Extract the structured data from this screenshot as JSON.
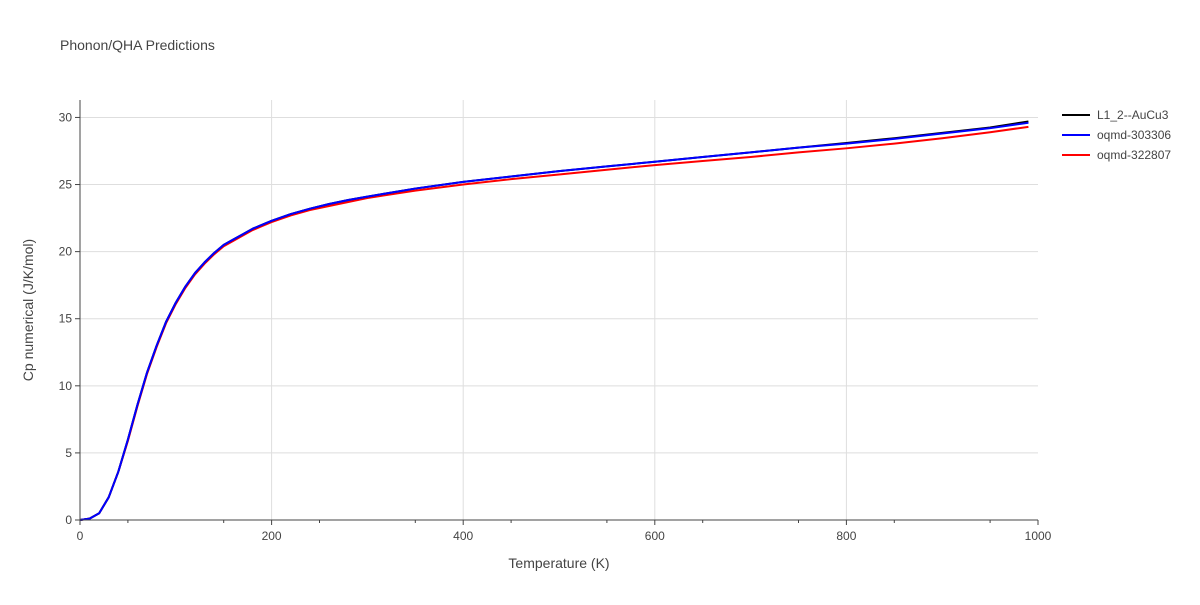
{
  "chart_data": {
    "type": "line",
    "title": "Phonon/QHA Predictions",
    "xlabel": "Temperature (K)",
    "ylabel": "Cp numerical (J/K/mol)",
    "xlim": [
      0,
      1000
    ],
    "ylim": [
      0,
      31.3
    ],
    "xticks": [
      0,
      200,
      400,
      600,
      800,
      1000
    ],
    "yticks": [
      0,
      5,
      10,
      15,
      20,
      25,
      30
    ],
    "grid": true,
    "legend_position": "top-right",
    "series": [
      {
        "name": "L1_2--AuCu3",
        "color": "#000000",
        "x": [
          0,
          10,
          20,
          30,
          40,
          50,
          60,
          70,
          80,
          90,
          100,
          110,
          120,
          130,
          140,
          150,
          160,
          170,
          180,
          190,
          200,
          220,
          240,
          260,
          280,
          300,
          350,
          400,
          450,
          500,
          550,
          600,
          650,
          700,
          750,
          800,
          850,
          900,
          950,
          990
        ],
        "y": [
          0,
          0.1,
          0.5,
          1.7,
          3.6,
          6.0,
          8.6,
          11.0,
          13.0,
          14.8,
          16.2,
          17.4,
          18.4,
          19.2,
          19.9,
          20.5,
          20.9,
          21.3,
          21.7,
          22.0,
          22.3,
          22.8,
          23.2,
          23.55,
          23.85,
          24.1,
          24.7,
          25.2,
          25.6,
          26.0,
          26.35,
          26.7,
          27.05,
          27.4,
          27.75,
          28.1,
          28.45,
          28.85,
          29.25,
          29.7
        ]
      },
      {
        "name": "oqmd-303306",
        "color": "#0000ff",
        "x": [
          0,
          10,
          20,
          30,
          40,
          50,
          60,
          70,
          80,
          90,
          100,
          110,
          120,
          130,
          140,
          150,
          160,
          170,
          180,
          190,
          200,
          220,
          240,
          260,
          280,
          300,
          350,
          400,
          450,
          500,
          550,
          600,
          650,
          700,
          750,
          800,
          850,
          900,
          950,
          990
        ],
        "y": [
          0,
          0.1,
          0.5,
          1.7,
          3.6,
          6.0,
          8.6,
          11.0,
          13.0,
          14.8,
          16.2,
          17.4,
          18.4,
          19.2,
          19.9,
          20.5,
          20.9,
          21.3,
          21.7,
          22.0,
          22.3,
          22.8,
          23.2,
          23.55,
          23.85,
          24.1,
          24.7,
          25.2,
          25.6,
          26.0,
          26.35,
          26.7,
          27.05,
          27.4,
          27.75,
          28.05,
          28.4,
          28.8,
          29.2,
          29.6
        ]
      },
      {
        "name": "oqmd-322807",
        "color": "#ff0000",
        "x": [
          0,
          10,
          20,
          30,
          40,
          50,
          60,
          70,
          80,
          90,
          100,
          110,
          120,
          130,
          140,
          150,
          160,
          170,
          180,
          190,
          200,
          220,
          240,
          260,
          280,
          300,
          350,
          400,
          450,
          500,
          550,
          600,
          650,
          700,
          750,
          800,
          850,
          900,
          950,
          990
        ],
        "y": [
          0,
          0.1,
          0.5,
          1.7,
          3.6,
          5.9,
          8.5,
          10.9,
          12.9,
          14.7,
          16.1,
          17.3,
          18.3,
          19.1,
          19.8,
          20.4,
          20.8,
          21.2,
          21.6,
          21.9,
          22.2,
          22.7,
          23.1,
          23.4,
          23.7,
          24.0,
          24.55,
          25.0,
          25.4,
          25.75,
          26.1,
          26.45,
          26.75,
          27.05,
          27.4,
          27.7,
          28.05,
          28.45,
          28.9,
          29.3
        ]
      }
    ]
  }
}
